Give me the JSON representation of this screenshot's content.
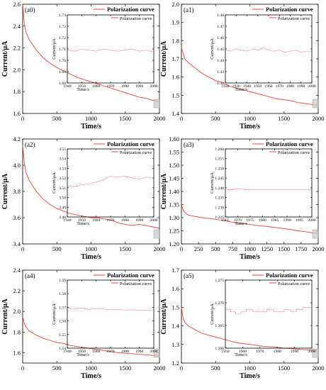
{
  "colors": {
    "series": "#e8403f",
    "axis": "#000000",
    "highlight": "#c8c8c8"
  },
  "chart_data": [
    {
      "type": "line",
      "panel": "(a0)",
      "xlabel": "Time/s",
      "ylabel": "Current/μA",
      "xlim": [
        0,
        2000
      ],
      "ylim": [
        1.6,
        2.6
      ],
      "xticks": [
        "0",
        "500",
        "1000",
        "1500",
        "2000"
      ],
      "yticks": [
        "1.6",
        "1.8",
        "2.0",
        "2.2",
        "2.4",
        "2.6"
      ],
      "series": [
        {
          "name": "Polarization curve",
          "x": [
            0,
            25,
            50,
            100,
            200,
            300,
            400,
            500,
            600,
            700,
            800,
            900,
            1000,
            1100,
            1200,
            1300,
            1400,
            1500,
            1600,
            1700,
            1800,
            1900,
            2000
          ],
          "y": [
            2.6,
            2.42,
            2.34,
            2.27,
            2.18,
            2.11,
            2.06,
            2.02,
            1.99,
            1.96,
            1.93,
            1.91,
            1.89,
            1.87,
            1.85,
            1.83,
            1.81,
            1.79,
            1.77,
            1.75,
            1.74,
            1.72,
            1.71
          ]
        }
      ],
      "legend": {
        "text": "Polarization curve",
        "position": "top-right"
      },
      "inset": {
        "xlabel": "Time/s",
        "ylabel": "Current/μA",
        "xlim": [
          1940,
          2000
        ],
        "ylim": [
          1.68,
          1.74
        ],
        "xticks": [
          "1940",
          "1950",
          "1960",
          "1970",
          "1980",
          "1990",
          "2000"
        ],
        "yticks": [
          "1.68",
          "1.69",
          "1.70",
          "1.71",
          "1.72",
          "1.73",
          "1.74"
        ],
        "series": [
          {
            "name": "Polarization curve",
            "x": [
              1940,
              1945,
              1950,
              1955,
              1960,
              1965,
              1970,
              1975,
              1980,
              1985,
              1990,
              1995,
              2000
            ],
            "y": [
              1.709,
              1.708,
              1.71,
              1.709,
              1.708,
              1.71,
              1.709,
              1.708,
              1.709,
              1.71,
              1.708,
              1.709,
              1.707
            ]
          }
        ],
        "legend": {
          "text": "Polarization curve"
        }
      }
    },
    {
      "type": "line",
      "panel": "(a1)",
      "xlabel": "Time/s",
      "ylabel": "Current/μA",
      "xlim": [
        0,
        2000
      ],
      "ylim": [
        1.4,
        2.0
      ],
      "xticks": [
        "0",
        "500",
        "1000",
        "1500",
        "2000"
      ],
      "yticks": [
        "1.4",
        "1.5",
        "1.6",
        "1.7",
        "1.8",
        "1.9",
        "2.0"
      ],
      "series": [
        {
          "name": "Polarization curve",
          "x": [
            0,
            25,
            50,
            100,
            200,
            300,
            400,
            500,
            600,
            700,
            800,
            900,
            1000,
            1100,
            1200,
            1300,
            1400,
            1500,
            1600,
            1700,
            1800,
            1900,
            2000
          ],
          "y": [
            1.76,
            1.73,
            1.7,
            1.68,
            1.65,
            1.62,
            1.6,
            1.58,
            1.57,
            1.55,
            1.54,
            1.53,
            1.52,
            1.51,
            1.5,
            1.49,
            1.48,
            1.475,
            1.47,
            1.46,
            1.455,
            1.45,
            1.445
          ]
        }
      ],
      "legend": {
        "text": "Polarization curve",
        "position": "top-right"
      },
      "inset": {
        "xlabel": "Time/s",
        "ylabel": "Current/μA",
        "xlim": [
          1920,
          2000
        ],
        "ylim": [
          1.42,
          1.48
        ],
        "xticks": [
          "1920",
          "1930",
          "1940",
          "1950",
          "1960",
          "1970",
          "1980",
          "1990",
          "2000"
        ],
        "yticks": [
          "1.42",
          "1.43",
          "1.44",
          "1.45",
          "1.46",
          "1.47",
          "1.48"
        ],
        "series": [
          {
            "name": "Polarization curve",
            "x": [
              1920,
              1925,
              1930,
              1935,
              1940,
              1945,
              1950,
              1955,
              1960,
              1965,
              1970,
              1975,
              1980,
              1985,
              1990,
              1995,
              2000
            ],
            "y": [
              1.449,
              1.448,
              1.45,
              1.449,
              1.448,
              1.45,
              1.449,
              1.451,
              1.449,
              1.448,
              1.449,
              1.447,
              1.448,
              1.449,
              1.447,
              1.448,
              1.448
            ]
          }
        ],
        "legend": {
          "text": "Polarization curve"
        }
      }
    },
    {
      "type": "line",
      "panel": "(a2)",
      "xlabel": "Time/s",
      "ylabel": "Current/μA",
      "xlim": [
        0,
        2000
      ],
      "ylim": [
        3.4,
        4.2
      ],
      "xticks": [
        "0",
        "500",
        "1000",
        "1500",
        "2000"
      ],
      "yticks": [
        "3.4",
        "3.6",
        "3.8",
        "4.0",
        "4.2"
      ],
      "series": [
        {
          "name": "Polarization curve",
          "x": [
            0,
            25,
            50,
            100,
            200,
            300,
            400,
            500,
            600,
            700,
            800,
            900,
            1000,
            1100,
            1200,
            1300,
            1400,
            1500,
            1600,
            1700,
            1800,
            1900,
            2000
          ],
          "y": [
            4.15,
            4.02,
            3.94,
            3.88,
            3.8,
            3.74,
            3.7,
            3.67,
            3.65,
            3.63,
            3.62,
            3.61,
            3.6,
            3.6,
            3.59,
            3.58,
            3.56,
            3.55,
            3.54,
            3.55,
            3.54,
            3.53,
            3.52
          ]
        }
      ],
      "legend": {
        "text": "Polarization curve",
        "position": "top-right"
      },
      "inset": {
        "xlabel": "Time/s",
        "ylabel": "Current/μA",
        "xlim": [
          1940,
          2000
        ],
        "ylim": [
          3.48,
          3.55
        ],
        "xticks": [
          "1940",
          "1950",
          "1960",
          "1970",
          "1980",
          "1990",
          "2000"
        ],
        "yticks": [
          "3.48",
          "3.49",
          "3.50",
          "3.51",
          "3.52",
          "3.53",
          "3.54",
          "3.55"
        ],
        "series": [
          {
            "name": "Polarization curve",
            "x": [
              1940,
              1945,
              1950,
              1955,
              1960,
              1965,
              1970,
              1975,
              1980,
              1985,
              1990,
              1995,
              2000
            ],
            "y": [
              3.512,
              3.511,
              3.513,
              3.514,
              3.516,
              3.518,
              3.522,
              3.521,
              3.522,
              3.52,
              3.519,
              3.521,
              3.52
            ]
          }
        ],
        "legend": {
          "text": "Polarization curve"
        }
      }
    },
    {
      "type": "line",
      "panel": "(a3)",
      "xlabel": "Time/s",
      "ylabel": "Current/μA",
      "xlim": [
        0,
        2000
      ],
      "ylim": [
        1.2,
        1.6
      ],
      "xticks": [
        "0",
        "250",
        "500",
        "750",
        "1000",
        "1250",
        "1500",
        "1750",
        "2000"
      ],
      "yticks": [
        "1.20",
        "1.25",
        "1.30",
        "1.35",
        "1.40",
        "1.45",
        "1.50",
        "1.55",
        "1.60"
      ],
      "series": [
        {
          "name": "Polarization curve",
          "x": [
            0,
            25,
            50,
            100,
            200,
            300,
            400,
            500,
            600,
            700,
            800,
            900,
            1000,
            1100,
            1200,
            1300,
            1400,
            1500,
            1600,
            1700,
            1800,
            1900,
            2000
          ],
          "y": [
            1.35,
            1.33,
            1.32,
            1.31,
            1.305,
            1.3,
            1.297,
            1.294,
            1.29,
            1.285,
            1.28,
            1.278,
            1.275,
            1.27,
            1.268,
            1.265,
            1.262,
            1.258,
            1.255,
            1.25,
            1.247,
            1.243,
            1.24
          ]
        }
      ],
      "legend": {
        "text": "Polarization curve",
        "position": "top-right"
      },
      "inset": {
        "xlabel": "Time/s",
        "ylabel": "Current/μA",
        "xlim": [
          1965,
          2000
        ],
        "ylim": [
          1.225,
          1.26
        ],
        "xticks": [
          "1965",
          "1970",
          "1975",
          "1980",
          "1985",
          "1990",
          "1995",
          "2000"
        ],
        "yticks": [
          "1.225",
          "1.230",
          "1.235",
          "1.240",
          "1.245",
          "1.250",
          "1.255",
          "1.260"
        ],
        "series": [
          {
            "name": "Polarization curve",
            "x": [
              1965,
              1968,
              1968,
              1973,
              1973,
              2000
            ],
            "y": [
              1.239,
              1.239,
              1.2395,
              1.2395,
              1.239,
              1.239
            ]
          }
        ],
        "legend": {
          "text": "Polarization curve"
        }
      }
    },
    {
      "type": "line",
      "panel": "(a4)",
      "xlabel": "Time/s",
      "ylabel": "Current/μA",
      "xlim": [
        0,
        2000
      ],
      "ylim": [
        1.5,
        2.4
      ],
      "xticks": [
        "0",
        "500",
        "1000",
        "1500",
        "2000"
      ],
      "yticks": [
        "1.6",
        "1.8",
        "2.0",
        "2.2",
        "2.4"
      ],
      "series": [
        {
          "name": "Polarization curve",
          "x": [
            0,
            25,
            50,
            100,
            200,
            300,
            400,
            500,
            600,
            700,
            800,
            900,
            1000,
            1100,
            1200,
            1300,
            1400,
            1500,
            1600,
            1700,
            1800,
            1900,
            2000
          ],
          "y": [
            1.95,
            1.88,
            1.85,
            1.81,
            1.77,
            1.74,
            1.72,
            1.7,
            1.69,
            1.67,
            1.66,
            1.65,
            1.64,
            1.63,
            1.62,
            1.61,
            1.6,
            1.595,
            1.59,
            1.585,
            1.58,
            1.575,
            1.57
          ]
        }
      ],
      "legend": {
        "text": "Polarization curve",
        "position": "top-right"
      },
      "inset": {
        "xlabel": "Time/s",
        "ylabel": "Current/μA",
        "xlim": [
          1940,
          2000
        ],
        "ylim": [
          1.54,
          1.59
        ],
        "xticks": [
          "1940",
          "1950",
          "1960",
          "1970",
          "1980",
          "1990",
          "2000"
        ],
        "yticks": [
          "1.54",
          "1.55",
          "1.56",
          "1.57",
          "1.58",
          "1.59"
        ],
        "series": [
          {
            "name": "Polarization curve",
            "x": [
              1940,
              1945,
              1950,
              1955,
              1960,
              1965,
              1970,
              1975,
              1980,
              1985,
              1990,
              1995,
              2000
            ],
            "y": [
              1.5695,
              1.569,
              1.5695,
              1.5685,
              1.569,
              1.5688,
              1.5683,
              1.5685,
              1.568,
              1.5682,
              1.5678,
              1.568,
              1.5675
            ]
          }
        ],
        "legend": {
          "text": "Polarization curve"
        }
      }
    },
    {
      "type": "line",
      "panel": "(a5)",
      "xlabel": "Time/s",
      "ylabel": "Current/μA",
      "xlim": [
        0,
        2000
      ],
      "ylim": [
        1.2,
        1.7
      ],
      "xticks": [
        "0",
        "500",
        "1000",
        "1500",
        "2000"
      ],
      "yticks": [
        "1.2",
        "1.3",
        "1.4",
        "1.5",
        "1.6",
        "1.7"
      ],
      "series": [
        {
          "name": "Polarization curve",
          "x": [
            0,
            25,
            50,
            100,
            200,
            300,
            400,
            500,
            600,
            700,
            800,
            900,
            1000,
            1100,
            1200,
            1300,
            1400,
            1500,
            1600,
            1700,
            1800,
            1900,
            2000
          ],
          "y": [
            1.5,
            1.44,
            1.42,
            1.4,
            1.38,
            1.36,
            1.35,
            1.34,
            1.33,
            1.32,
            1.31,
            1.305,
            1.3,
            1.295,
            1.29,
            1.288,
            1.285,
            1.28,
            1.278,
            1.275,
            1.272,
            1.27,
            1.268
          ]
        }
      ],
      "legend": {
        "text": "Polarization curve",
        "position": "top-right"
      },
      "inset": {
        "xlabel": "Time/s",
        "ylabel": "Current/μA",
        "xlim": [
          1950,
          2000
        ],
        "ylim": [
          1.26,
          1.275
        ],
        "xticks": [
          "1950",
          "1960",
          "1970",
          "1980",
          "1990",
          "2000"
        ],
        "yticks": [
          "1.260",
          "1.265",
          "1.270",
          "1.275"
        ],
        "series": [
          {
            "name": "Polarization curve",
            "x": [
              1950,
              1953,
              1953,
              1956,
              1956,
              1959,
              1959,
              1962,
              1962,
              1966,
              1966,
              1974,
              1974,
              1978,
              1978,
              1984,
              1984,
              1988,
              1988,
              1991,
              1991,
              1995,
              1995,
              2000
            ],
            "y": [
              1.2685,
              1.2685,
              1.268,
              1.268,
              1.2675,
              1.2675,
              1.268,
              1.268,
              1.2685,
              1.2685,
              1.268,
              1.268,
              1.2685,
              1.2685,
              1.268,
              1.268,
              1.2685,
              1.2685,
              1.268,
              1.268,
              1.2685,
              1.2685,
              1.269,
              1.269
            ]
          }
        ],
        "legend": {
          "text": "Polarization curve"
        }
      }
    }
  ]
}
